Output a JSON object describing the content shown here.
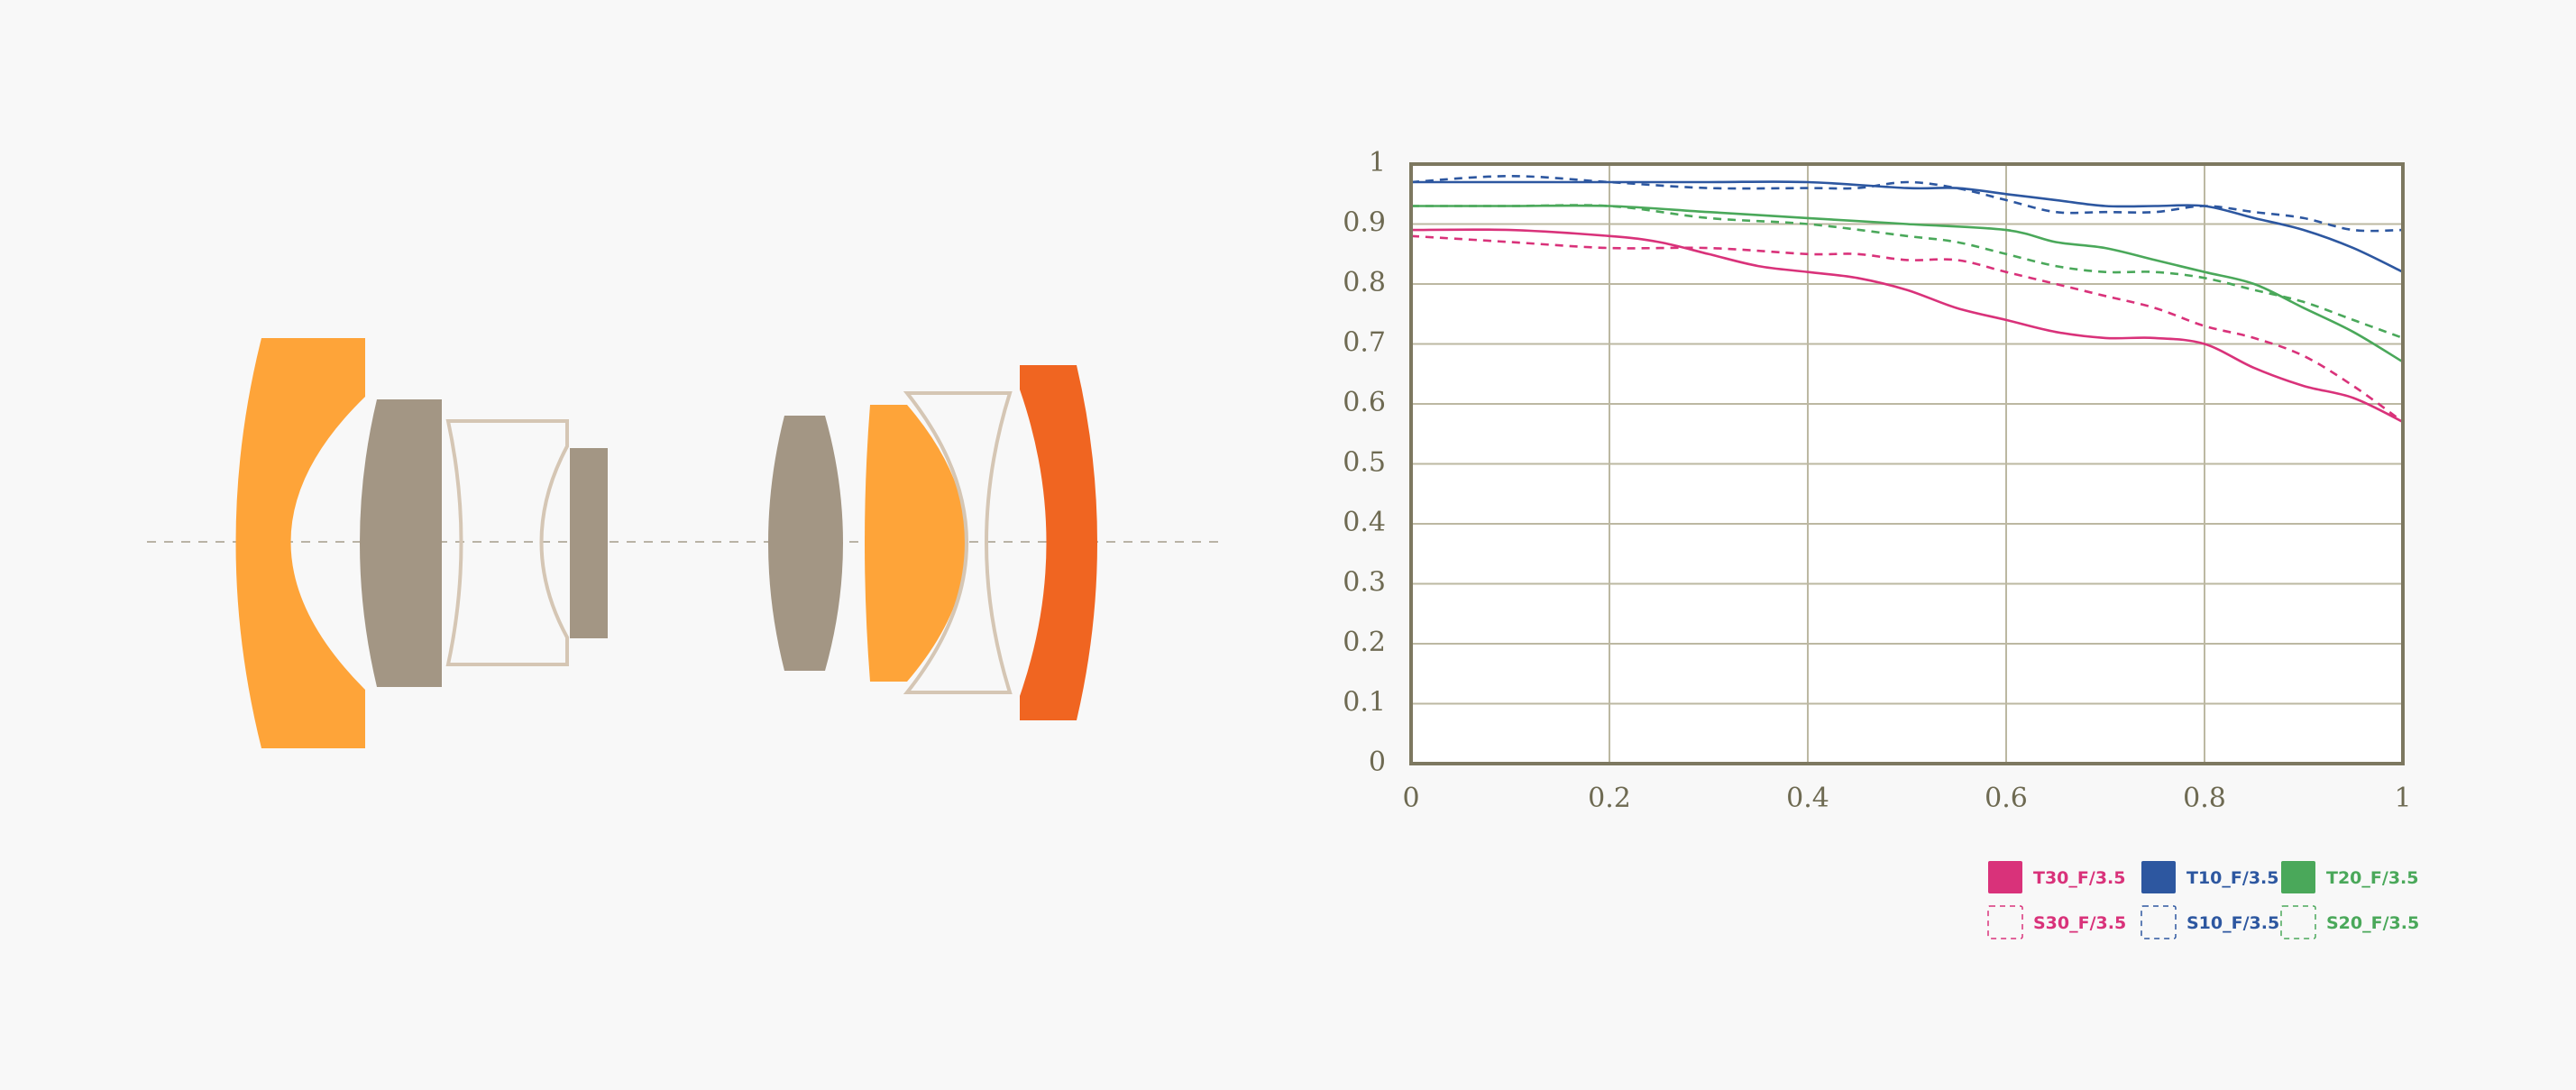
{
  "colors": {
    "background": "#f8f8f8",
    "lens_orange": "#fea439",
    "lens_red_orange": "#f06521",
    "lens_taupe": "#a39684",
    "lens_outline": "#d5c6b4",
    "axis_frame": "#7d7860",
    "grid": "#bcb8a2",
    "tick_text": "#6e6a52"
  },
  "lens_diagram": {
    "elements": [
      {
        "group": "front",
        "style": "filled",
        "color": "lens_orange"
      },
      {
        "group": "front",
        "style": "filled",
        "color": "lens_taupe"
      },
      {
        "group": "front",
        "style": "outline",
        "color": "lens_outline"
      },
      {
        "group": "front",
        "style": "filled",
        "color": "lens_taupe"
      },
      {
        "group": "rear",
        "style": "filled",
        "color": "lens_taupe"
      },
      {
        "group": "rear",
        "style": "filled",
        "color": "lens_orange"
      },
      {
        "group": "rear",
        "style": "outline",
        "color": "lens_outline"
      },
      {
        "group": "rear",
        "style": "filled",
        "color": "lens_red_orange"
      }
    ]
  },
  "chart_data": {
    "type": "line",
    "title": "",
    "xlabel": "",
    "ylabel": "",
    "xlim": [
      0,
      1
    ],
    "ylim": [
      0,
      1
    ],
    "grid": true,
    "legend_position": "bottom-right",
    "x_ticks": [
      "0",
      "0.2",
      "0.4",
      "0.6",
      "0.8",
      "1"
    ],
    "y_ticks": [
      "0",
      "0.1",
      "0.2",
      "0.3",
      "0.4",
      "0.5",
      "0.6",
      "0.7",
      "0.8",
      "0.9",
      "1"
    ],
    "series": [
      {
        "name": "T30_F/3.5",
        "color": "#d9327a",
        "style": "solid",
        "x": [
          0,
          0.1,
          0.2,
          0.25,
          0.3,
          0.35,
          0.4,
          0.45,
          0.5,
          0.55,
          0.6,
          0.65,
          0.7,
          0.75,
          0.8,
          0.85,
          0.9,
          0.95,
          1.0
        ],
        "y": [
          0.89,
          0.89,
          0.88,
          0.87,
          0.85,
          0.83,
          0.82,
          0.81,
          0.79,
          0.76,
          0.74,
          0.72,
          0.71,
          0.71,
          0.7,
          0.66,
          0.63,
          0.61,
          0.57
        ]
      },
      {
        "name": "T10_F/3.5",
        "color": "#2d57a0",
        "style": "solid",
        "x": [
          0,
          0.1,
          0.2,
          0.3,
          0.4,
          0.5,
          0.55,
          0.6,
          0.65,
          0.7,
          0.75,
          0.8,
          0.85,
          0.9,
          0.95,
          1.0
        ],
        "y": [
          0.97,
          0.97,
          0.97,
          0.97,
          0.97,
          0.96,
          0.96,
          0.95,
          0.94,
          0.93,
          0.93,
          0.93,
          0.91,
          0.89,
          0.86,
          0.82
        ]
      },
      {
        "name": "T20_F/3.5",
        "color": "#4aa85a",
        "style": "solid",
        "x": [
          0,
          0.1,
          0.2,
          0.3,
          0.4,
          0.5,
          0.6,
          0.65,
          0.7,
          0.75,
          0.8,
          0.85,
          0.9,
          0.95,
          1.0
        ],
        "y": [
          0.93,
          0.93,
          0.93,
          0.92,
          0.91,
          0.9,
          0.89,
          0.87,
          0.86,
          0.84,
          0.82,
          0.8,
          0.76,
          0.72,
          0.67
        ]
      },
      {
        "name": "S30_F/3.5",
        "color": "#d9327a",
        "style": "dashed",
        "x": [
          0,
          0.1,
          0.2,
          0.3,
          0.4,
          0.45,
          0.5,
          0.55,
          0.6,
          0.65,
          0.7,
          0.75,
          0.8,
          0.85,
          0.9,
          0.95,
          1.0
        ],
        "y": [
          0.88,
          0.87,
          0.86,
          0.86,
          0.85,
          0.85,
          0.84,
          0.84,
          0.82,
          0.8,
          0.78,
          0.76,
          0.73,
          0.71,
          0.68,
          0.63,
          0.57
        ]
      },
      {
        "name": "S10_F/3.5",
        "color": "#2d57a0",
        "style": "dashed",
        "x": [
          0,
          0.1,
          0.2,
          0.3,
          0.4,
          0.45,
          0.5,
          0.55,
          0.6,
          0.65,
          0.7,
          0.75,
          0.8,
          0.85,
          0.9,
          0.95,
          1.0
        ],
        "y": [
          0.97,
          0.98,
          0.97,
          0.96,
          0.96,
          0.96,
          0.97,
          0.96,
          0.94,
          0.92,
          0.92,
          0.92,
          0.93,
          0.92,
          0.91,
          0.89,
          0.89
        ]
      },
      {
        "name": "S20_F/3.5",
        "color": "#4aa85a",
        "style": "dashed",
        "x": [
          0,
          0.1,
          0.2,
          0.3,
          0.4,
          0.5,
          0.55,
          0.6,
          0.65,
          0.7,
          0.75,
          0.8,
          0.85,
          0.9,
          0.95,
          1.0
        ],
        "y": [
          0.93,
          0.93,
          0.93,
          0.91,
          0.9,
          0.88,
          0.87,
          0.85,
          0.83,
          0.82,
          0.82,
          0.81,
          0.79,
          0.77,
          0.74,
          0.71
        ]
      }
    ]
  }
}
